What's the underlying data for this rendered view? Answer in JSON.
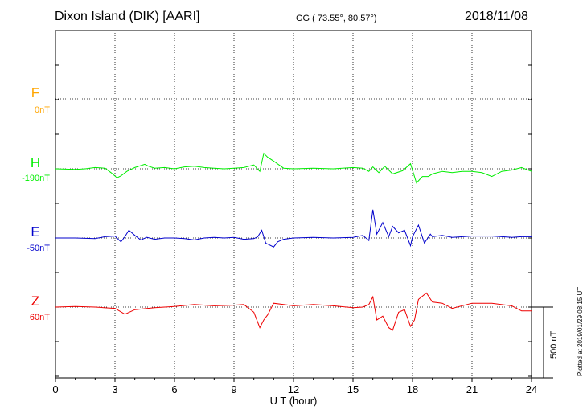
{
  "header": {
    "station": "Dixon Island (DIK)  [AARI]",
    "coords": "GG ( 73.55°,  80.57°)",
    "date": "2018/11/08"
  },
  "footer": {
    "plotted": "Plotted at 2019/01/29 08:15 UT"
  },
  "colors": {
    "F": "#ffa500",
    "H": "#00ee00",
    "E": "#0000cc",
    "Z": "#ee0000"
  },
  "chart_data": {
    "type": "line",
    "title": "Dixon Island (DIK)  [AARI]",
    "xlabel": "U T (hour)",
    "xlim": [
      0,
      24
    ],
    "xticks": [
      "0",
      "3",
      "6",
      "9",
      "12",
      "15",
      "18",
      "21",
      "24"
    ],
    "scale_bar": "500 nT",
    "grid": true,
    "series": [
      {
        "name": "F",
        "baseline": "0nT",
        "values": []
      },
      {
        "name": "H",
        "baseline": "-190nT",
        "x": [
          0,
          1,
          1.5,
          2,
          2.5,
          2.8,
          3.1,
          3.3,
          3.6,
          4,
          4.5,
          4.7,
          5,
          5.5,
          6,
          6.5,
          7,
          7.5,
          8,
          8.5,
          9,
          9.5,
          10,
          10.3,
          10.5,
          10.7,
          11,
          11.5,
          12,
          13,
          14,
          15,
          15.5,
          15.8,
          16,
          16.3,
          16.6,
          17,
          17.5,
          17.9,
          18.2,
          18.5,
          18.8,
          19,
          19.5,
          20,
          20.5,
          21,
          21.5,
          22,
          22.5,
          23,
          23.5,
          24
        ],
        "values": [
          0,
          -5,
          0,
          10,
          5,
          -30,
          -70,
          -55,
          -20,
          10,
          35,
          20,
          5,
          10,
          0,
          15,
          20,
          10,
          5,
          0,
          5,
          10,
          30,
          -20,
          120,
          90,
          60,
          5,
          0,
          5,
          0,
          10,
          5,
          -20,
          15,
          -30,
          20,
          -40,
          -15,
          40,
          -110,
          -60,
          -60,
          -40,
          -20,
          -30,
          -20,
          -20,
          -30,
          -60,
          -20,
          -10,
          10,
          -20
        ]
      },
      {
        "name": "E",
        "baseline": "-50nT",
        "x": [
          0,
          1,
          2,
          2.5,
          3,
          3.3,
          3.5,
          3.7,
          4,
          4.3,
          4.6,
          5,
          5.5,
          6,
          6.5,
          7,
          7.5,
          8,
          8.5,
          9,
          9.5,
          10,
          10.2,
          10.4,
          10.6,
          10.8,
          11,
          11.2,
          11.5,
          12,
          13,
          14,
          15,
          15.5,
          15.8,
          16,
          16.2,
          16.5,
          16.8,
          17,
          17.3,
          17.6,
          17.9,
          18,
          18.3,
          18.6,
          18.9,
          19,
          19.5,
          20,
          21,
          22,
          23,
          23.5,
          24
        ],
        "values": [
          0,
          0,
          -5,
          10,
          15,
          -30,
          10,
          60,
          20,
          -15,
          5,
          -10,
          0,
          0,
          -5,
          -15,
          0,
          5,
          0,
          5,
          -10,
          -5,
          10,
          60,
          -40,
          -55,
          -70,
          -30,
          -10,
          0,
          5,
          0,
          5,
          20,
          -20,
          220,
          30,
          120,
          10,
          90,
          40,
          60,
          -60,
          10,
          100,
          -40,
          30,
          10,
          20,
          5,
          15,
          15,
          5,
          10,
          10
        ]
      },
      {
        "name": "Z",
        "baseline": "60nT",
        "x": [
          0,
          1,
          2,
          3,
          3.5,
          4,
          5,
          6,
          7,
          8,
          9,
          9.5,
          10,
          10.3,
          10.5,
          10.7,
          11,
          11.5,
          12,
          13,
          14,
          15,
          15.5,
          15.8,
          16,
          16.2,
          16.5,
          16.8,
          17,
          17.3,
          17.6,
          17.9,
          18.1,
          18.3,
          18.7,
          19,
          19.5,
          20,
          21,
          22,
          23,
          23.5,
          24
        ],
        "values": [
          0,
          5,
          0,
          -10,
          -55,
          -20,
          -5,
          5,
          20,
          10,
          15,
          20,
          -40,
          -160,
          -100,
          -60,
          30,
          20,
          10,
          20,
          10,
          -5,
          0,
          20,
          80,
          -100,
          -70,
          -160,
          -180,
          -40,
          -20,
          -150,
          -100,
          60,
          110,
          40,
          30,
          -10,
          30,
          30,
          10,
          -30,
          -30
        ]
      }
    ]
  }
}
